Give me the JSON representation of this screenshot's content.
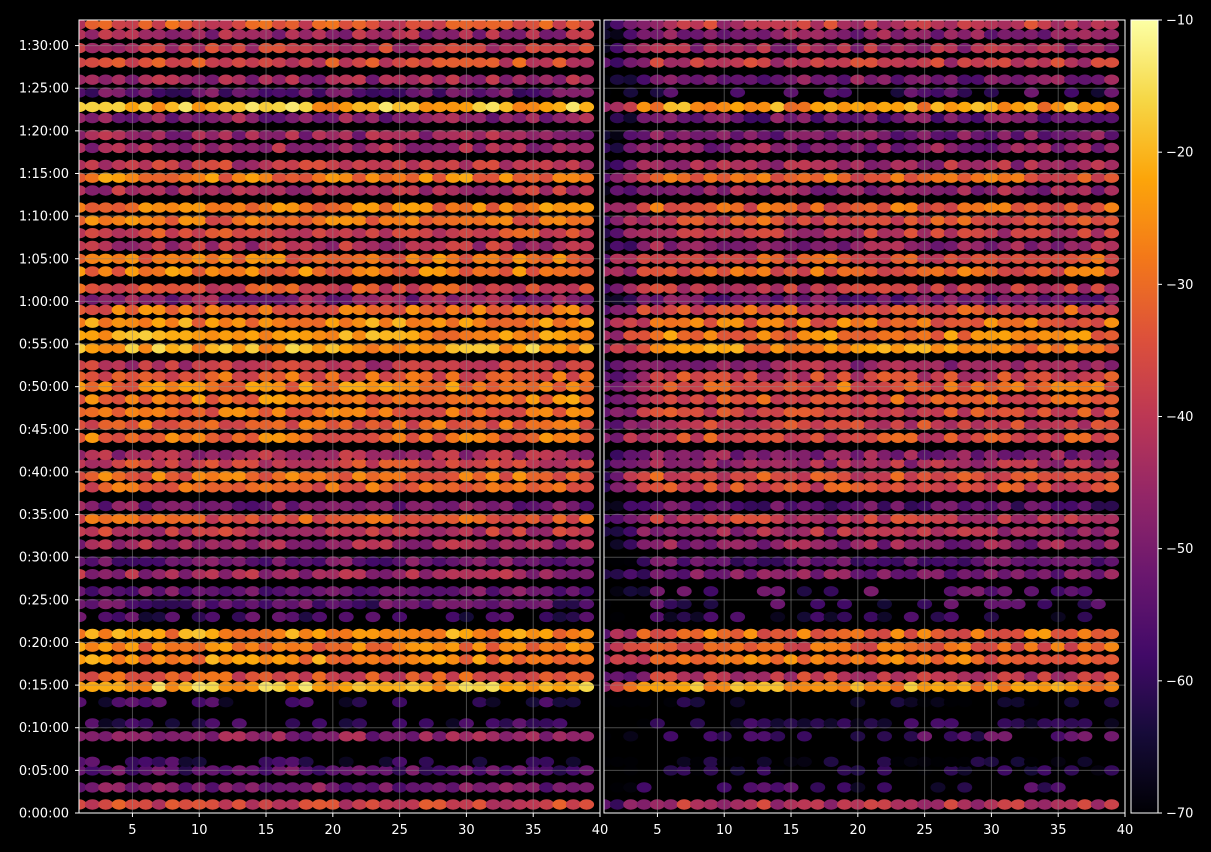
{
  "colors": {
    "background": "#000000",
    "axis": "#ffffff",
    "grid": "#888888",
    "colormap": [
      "#000004",
      "#160b39",
      "#420a68",
      "#6a176e",
      "#932667",
      "#bc3754",
      "#dd513a",
      "#f37819",
      "#fca50a",
      "#f6d746",
      "#fcffa4"
    ]
  },
  "chart_data": {
    "type": "heatmap",
    "colormap": "inferno",
    "grid": true,
    "panels": [
      {
        "id": "left",
        "xlim": [
          1,
          40
        ]
      },
      {
        "id": "right",
        "xlim": [
          1,
          40
        ]
      }
    ],
    "x_ticks": [
      "5",
      "10",
      "15",
      "20",
      "25",
      "30",
      "35",
      "40"
    ],
    "x_tick_values": [
      5,
      10,
      15,
      20,
      25,
      30,
      35,
      40
    ],
    "y_ticks": [
      "0:00:00",
      "0:05:00",
      "0:10:00",
      "0:15:00",
      "0:20:00",
      "0:25:00",
      "0:30:00",
      "0:35:00",
      "0:40:00",
      "0:45:00",
      "0:50:00",
      "0:55:00",
      "1:00:00",
      "1:05:00",
      "1:10:00",
      "1:15:00",
      "1:20:00",
      "1:25:00",
      "1:30:00"
    ],
    "y_tick_values_min": [
      0,
      5,
      10,
      15,
      20,
      25,
      30,
      35,
      40,
      45,
      50,
      55,
      60,
      65,
      70,
      75,
      80,
      85,
      90
    ],
    "ylim_min": [
      0,
      93
    ],
    "colorbar": {
      "ticks": [
        "−10",
        "−20",
        "−30",
        "−40",
        "−50",
        "−60",
        "−70"
      ],
      "tick_values": [
        -10,
        -20,
        -30,
        -40,
        -50,
        -60,
        -70
      ],
      "range": [
        -70,
        -10
      ]
    },
    "row_profile": {
      "time_min": [
        1,
        3,
        5,
        6,
        9,
        10.5,
        13,
        14.8,
        16,
        18,
        19.5,
        21,
        23,
        24.5,
        26,
        28,
        29.5,
        31.5,
        33,
        34.5,
        36,
        38.2,
        39.5,
        41,
        42,
        44,
        45.5,
        47,
        48.5,
        50,
        51.2,
        52.5,
        54.5,
        56,
        57.5,
        59,
        60.2,
        61.5,
        63.5,
        65,
        66.5,
        68,
        69.5,
        71,
        73,
        74.5,
        76,
        78,
        79.5,
        81.5,
        82.8,
        84.5,
        86,
        88,
        89.7,
        91.3,
        92.5
      ],
      "left_intensity": [
        -38,
        -50,
        -55,
        -60,
        -48,
        -60,
        -60,
        -20,
        -35,
        -26,
        -28,
        -25,
        -58,
        -55,
        -52,
        -44,
        -52,
        -45,
        -40,
        -34,
        -50,
        -32,
        -30,
        -38,
        -44,
        -30,
        -32,
        -30,
        -28,
        -28,
        -33,
        -40,
        -22,
        -24,
        -26,
        -30,
        -48,
        -36,
        -28,
        -30,
        -42,
        -36,
        -30,
        -28,
        -42,
        -28,
        -40,
        -44,
        -46,
        -48,
        -20,
        -54,
        -45,
        -36,
        -40,
        -45,
        -35
      ],
      "right_intensity": [
        -42,
        -60,
        -65,
        -68,
        -56,
        -62,
        -65,
        -24,
        -40,
        -30,
        -32,
        -30,
        -62,
        -58,
        -56,
        -50,
        -55,
        -48,
        -44,
        -40,
        -55,
        -36,
        -36,
        -44,
        -48,
        -36,
        -38,
        -36,
        -34,
        -32,
        -38,
        -45,
        -26,
        -28,
        -30,
        -34,
        -52,
        -40,
        -32,
        -34,
        -46,
        -40,
        -34,
        -32,
        -46,
        -32,
        -44,
        -48,
        -50,
        -52,
        -24,
        -58,
        -50,
        -40,
        -44,
        -48,
        -40
      ]
    }
  }
}
